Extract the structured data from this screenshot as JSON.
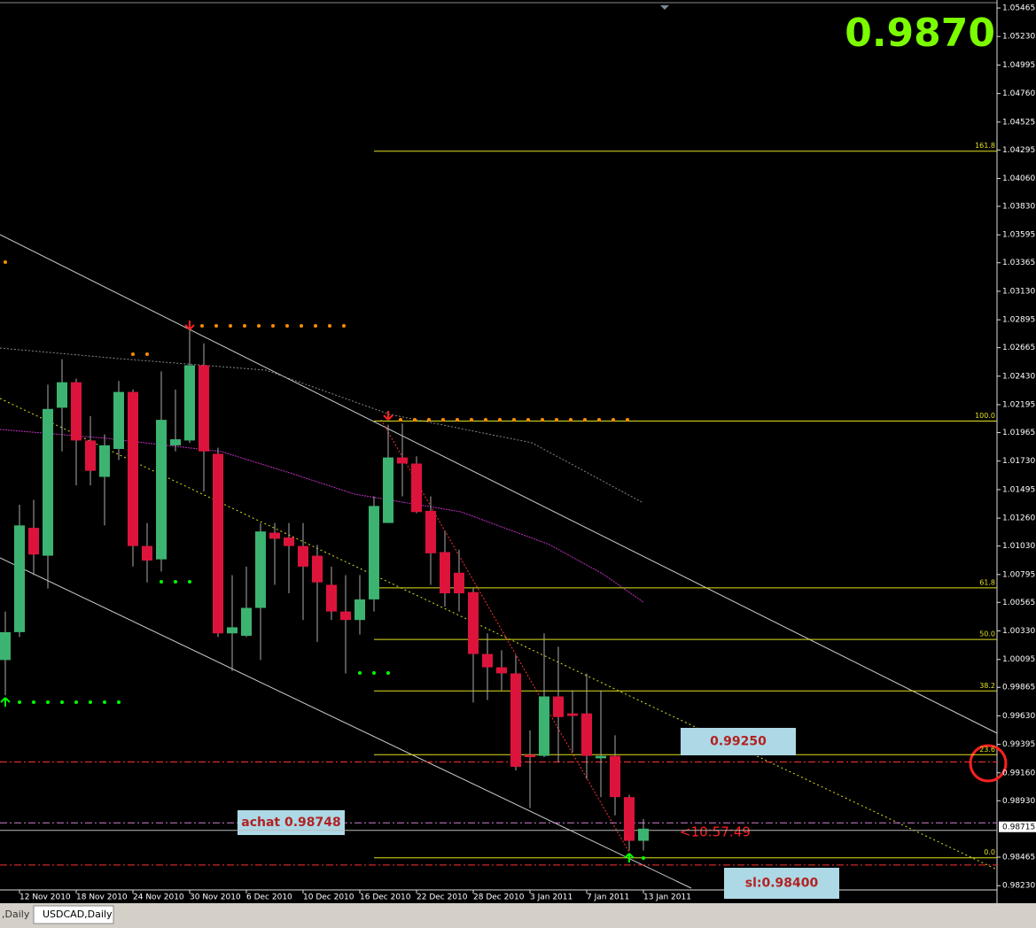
{
  "chart_data": {
    "type": "candlestick",
    "price_display": "0.9870",
    "categories": [
      null,
      "12 Nov 2010",
      null,
      null,
      null,
      "18 Nov 2010",
      null,
      null,
      null,
      "24 Nov 2010",
      null,
      null,
      null,
      "30 Nov 2010",
      null,
      null,
      null,
      "6 Dec 2010",
      null,
      null,
      null,
      "10 Dec 2010",
      null,
      null,
      null,
      "16 Dec 2010",
      null,
      null,
      null,
      "22 Dec 2010",
      null,
      null,
      null,
      "28 Dec 2010",
      null,
      null,
      null,
      "3 Jan 2011",
      null,
      null,
      null,
      "7 Jan 2011",
      null,
      null,
      null,
      "13 Jan 2011"
    ],
    "open": [
      1.0009,
      1.0032,
      1.0118,
      1.0095,
      1.0217,
      1.0238,
      1.019,
      1.016,
      1.0183,
      1.023,
      1.0103,
      1.0092,
      1.0186,
      1.019,
      1.0252,
      1.0179,
      1.0031,
      1.0029,
      1.0052,
      1.0114,
      1.011,
      1.0103,
      1.0095,
      1.0071,
      1.0049,
      1.0042,
      1.0059,
      1.0122,
      1.0176,
      1.0171,
      1.0132,
      1.0098,
      1.0081,
      1.0065,
      1.0014,
      1.0003,
      0.9998,
      0.9931,
      0.993,
      0.9979,
      0.9965,
      0.9965,
      0.9928,
      0.993,
      0.9896,
      0.986
    ],
    "high": [
      1.0049,
      1.0137,
      1.0141,
      1.0236,
      1.0257,
      1.0241,
      1.021,
      1.0195,
      1.0239,
      1.0232,
      1.0122,
      1.0247,
      1.0232,
      1.0283,
      1.027,
      1.0184,
      1.0079,
      1.0086,
      1.0122,
      1.0122,
      1.0122,
      1.0122,
      1.0104,
      1.0086,
      1.0079,
      1.0079,
      1.0144,
      1.0203,
      1.0204,
      1.0177,
      1.0144,
      1.0115,
      1.01,
      1.0068,
      1.0031,
      1.0017,
      1.0013,
      0.9951,
      1.0031,
      1.002,
      0.9984,
      0.9998,
      0.9984,
      0.9947,
      0.9898,
      0.9878
    ],
    "low": [
      0.998,
      1.0028,
      1.0079,
      1.0068,
      1.0181,
      1.0153,
      1.0153,
      1.012,
      1.0174,
      1.0086,
      1.0073,
      1.0082,
      1.0181,
      1.0188,
      1.0148,
      1.0028,
      1.0,
      1.0028,
      1.0009,
      1.0071,
      1.0064,
      1.0042,
      1.0024,
      1.0042,
      0.9998,
      1.003,
      1.0049,
      1.0122,
      1.0144,
      1.013,
      1.0071,
      1.0053,
      1.0049,
      0.9974,
      0.9976,
      0.9984,
      0.9918,
      0.9887,
      0.9929,
      0.9925,
      0.9933,
      0.9911,
      0.9896,
      0.9881,
      0.9852,
      0.9852
    ],
    "close": [
      1.0032,
      1.012,
      1.0096,
      1.0216,
      1.0238,
      1.019,
      1.0165,
      1.0186,
      1.023,
      1.0103,
      1.0091,
      1.0207,
      1.0191,
      1.0252,
      1.0181,
      1.0031,
      1.0036,
      1.0052,
      1.0115,
      1.0109,
      1.0103,
      1.0086,
      1.0073,
      1.0049,
      1.0042,
      1.0059,
      1.0136,
      1.0176,
      1.0171,
      1.0131,
      1.0097,
      1.0064,
      1.0064,
      1.0014,
      1.0003,
      0.9998,
      0.9921,
      0.9929,
      0.9979,
      0.9962,
      0.9963,
      0.993,
      0.993,
      0.9896,
      0.986,
      0.987
    ],
    "up_color": "#3cb371",
    "down_color": "#dc143c",
    "ylim": [
      0.98195,
      1.05531
    ],
    "yticks": [
      1.05465,
      {
        "value": 1.0523,
        "label": "1.05230"
      },
      1.04995,
      {
        "value": 1.0476,
        "label": "1.04760"
      },
      1.04525,
      1.04295,
      {
        "value": 1.0406,
        "label": "1.04060"
      },
      {
        "value": 1.0383,
        "label": "1.03830"
      },
      1.03595,
      1.03365,
      {
        "value": 1.0313,
        "label": "1.03130"
      },
      1.02895,
      1.02665,
      {
        "value": 1.0243,
        "label": "1.02430"
      },
      1.02195,
      1.01965,
      {
        "value": 1.0173,
        "label": "1.01730"
      },
      1.01495,
      {
        "value": 1.0126,
        "label": "1.01260"
      },
      {
        "value": 1.0103,
        "label": "1.01030"
      },
      1.00795,
      1.00565,
      {
        "value": 1.0033,
        "label": "1.00330"
      },
      1.00095,
      0.99865,
      {
        "value": 0.9963,
        "label": "0.99630"
      },
      0.99395,
      {
        "value": 0.9916,
        "label": "0.99160"
      },
      {
        "value": 0.9893,
        "label": "0.98930"
      },
      0.98465,
      {
        "value": 0.9823,
        "label": "0.98230"
      }
    ],
    "current_price": 0.98715,
    "fib": {
      "high": 1.0206,
      "low": 0.9846,
      "color": "#e0e020",
      "levels": [
        161.8,
        {
          "value": 100,
          "label": "100.0"
        },
        61.8,
        {
          "value": 50,
          "label": "50.0"
        },
        38.2,
        23.6,
        {
          "value": 0,
          "label": "0.0"
        }
      ]
    },
    "price_lines": [
      {
        "label": "0.99250",
        "value": 0.9925,
        "color": "#ff3030"
      },
      {
        "label": "achat 0.98748",
        "value": 0.98748,
        "color": "#d080d0"
      },
      {
        "label": "sl:0.98400",
        "value": 0.984,
        "color": "#ff3030"
      }
    ],
    "timer": "<10:57:49",
    "tabs": [
      ",Daily",
      "USDCAD,Daily"
    ]
  }
}
